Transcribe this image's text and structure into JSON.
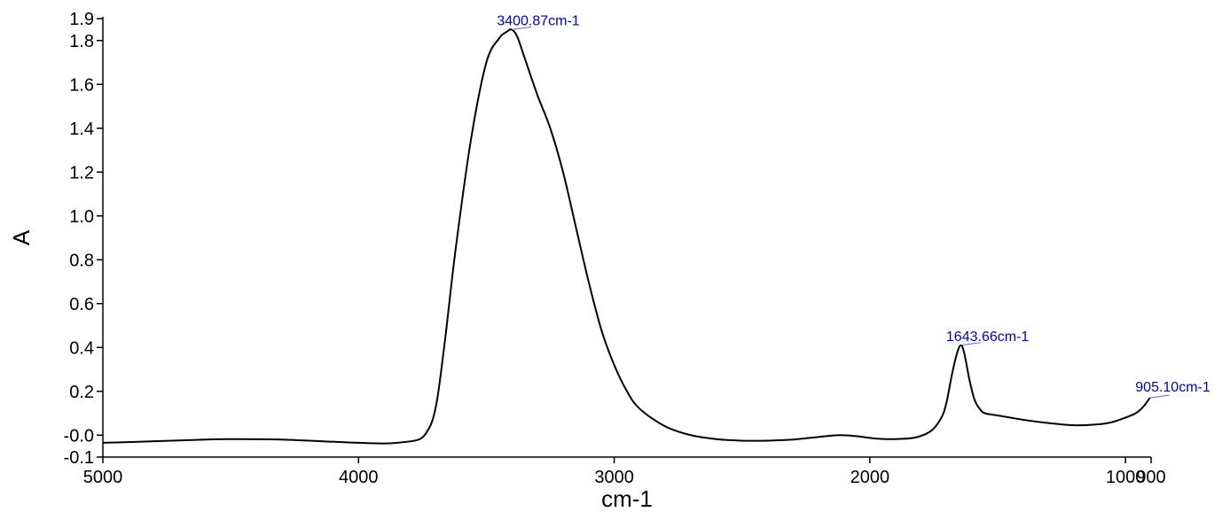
{
  "chart_data": {
    "type": "line",
    "xlabel": "cm-1",
    "ylabel": "A",
    "xlim": [
      5000,
      900
    ],
    "ylim": [
      -0.1,
      1.9
    ],
    "x_reversed": true,
    "grid": false,
    "x_ticks": [
      {
        "value": 5000,
        "label": "5000"
      },
      {
        "value": 4000,
        "label": "4000"
      },
      {
        "value": 3000,
        "label": "3000"
      },
      {
        "value": 2000,
        "label": "2000"
      },
      {
        "value": 1000,
        "label": "1000"
      },
      {
        "value": 900,
        "label": "900"
      }
    ],
    "y_ticks": [
      {
        "value": -0.1,
        "label": "-0.1"
      },
      {
        "value": 0.0,
        "label": "-0.0"
      },
      {
        "value": 0.2,
        "label": "0.2"
      },
      {
        "value": 0.4,
        "label": "0.4"
      },
      {
        "value": 0.6,
        "label": "0.6"
      },
      {
        "value": 0.8,
        "label": "0.8"
      },
      {
        "value": 1.0,
        "label": "1.0"
      },
      {
        "value": 1.2,
        "label": "1.2"
      },
      {
        "value": 1.4,
        "label": "1.4"
      },
      {
        "value": 1.6,
        "label": "1.6"
      },
      {
        "value": 1.8,
        "label": "1.8"
      },
      {
        "value": 1.9,
        "label": "1.9"
      }
    ],
    "series": [
      {
        "color": "#000000",
        "x": [
          5000,
          4800,
          4600,
          4450,
          4300,
          4100,
          4000,
          3900,
          3850,
          3780,
          3750,
          3730,
          3710,
          3690,
          3660,
          3620,
          3560,
          3500,
          3450,
          3420,
          3400.87,
          3380,
          3350,
          3300,
          3250,
          3200,
          3150,
          3100,
          3050,
          3000,
          2950,
          2900,
          2800,
          2700,
          2600,
          2500,
          2400,
          2300,
          2200,
          2120,
          2050,
          1980,
          1900,
          1820,
          1760,
          1720,
          1700,
          1680,
          1660,
          1643.66,
          1630,
          1610,
          1590,
          1570,
          1550,
          1500,
          1400,
          1300,
          1200,
          1100,
          1050,
          1000,
          960,
          930,
          905.1
        ],
        "y": [
          -0.035,
          -0.028,
          -0.02,
          -0.018,
          -0.02,
          -0.03,
          -0.035,
          -0.038,
          -0.035,
          -0.025,
          -0.01,
          0.02,
          0.07,
          0.18,
          0.45,
          0.85,
          1.35,
          1.7,
          1.81,
          1.84,
          1.85,
          1.82,
          1.72,
          1.55,
          1.4,
          1.2,
          0.95,
          0.7,
          0.48,
          0.32,
          0.2,
          0.12,
          0.04,
          0.0,
          -0.018,
          -0.025,
          -0.025,
          -0.02,
          -0.008,
          0.0,
          -0.005,
          -0.015,
          -0.018,
          -0.01,
          0.02,
          0.08,
          0.15,
          0.27,
          0.37,
          0.41,
          0.37,
          0.25,
          0.16,
          0.12,
          0.1,
          0.09,
          0.07,
          0.055,
          0.045,
          0.05,
          0.06,
          0.08,
          0.1,
          0.13,
          0.17
        ]
      }
    ],
    "annotations": [
      {
        "x": 3400.87,
        "y": 1.85,
        "label": "3400.87cm-1"
      },
      {
        "x": 1643.66,
        "y": 0.41,
        "label": "1643.66cm-1"
      },
      {
        "x": 905.1,
        "y": 0.17,
        "label": "905.10cm-1"
      }
    ]
  }
}
